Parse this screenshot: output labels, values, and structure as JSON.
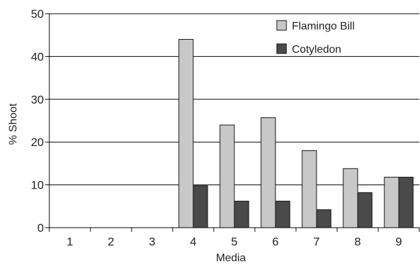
{
  "chart_data": {
    "type": "bar",
    "title": "",
    "xlabel": "Media",
    "ylabel": "% Shoot",
    "categories": [
      "1",
      "2",
      "3",
      "4",
      "5",
      "6",
      "7",
      "8",
      "9"
    ],
    "series": [
      {
        "name": "Flamingo Bill",
        "color": "#c8c8c8",
        "values": [
          0,
          0,
          0,
          44,
          24,
          25.7,
          18,
          13.8,
          11.8
        ]
      },
      {
        "name": "Cotyledon",
        "color": "#4a4a4a",
        "values": [
          0,
          0,
          0,
          9.8,
          6.2,
          6.2,
          4.2,
          8.2,
          11.8
        ]
      }
    ],
    "ylim": [
      0,
      50
    ],
    "yticks": [
      0,
      10,
      20,
      30,
      40,
      50
    ],
    "grid": true,
    "legend": "top-right"
  }
}
